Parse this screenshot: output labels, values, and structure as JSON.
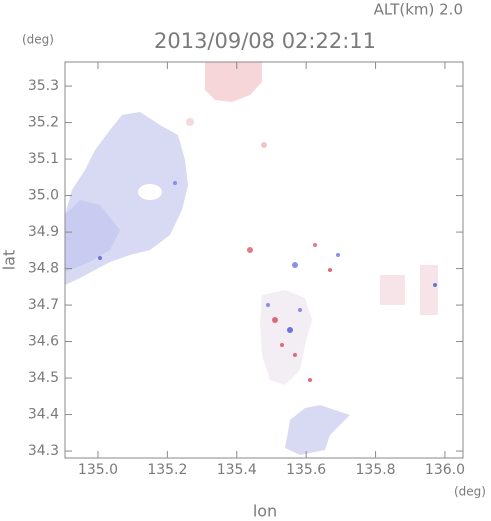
{
  "chart_data": {
    "type": "map",
    "title": "2013/09/08 02:22:11",
    "subtitle": "ALT(km) 2.0",
    "x_label": "lon",
    "y_label": "lat",
    "x_unit": "(deg)",
    "y_unit": "(deg)",
    "xlim": [
      134.905,
      136.052
    ],
    "ylim": [
      34.281,
      35.366
    ],
    "xticks": [
      {
        "value": 135,
        "label": "135.0"
      },
      135.2,
      135.4,
      135.6,
      135.8,
      {
        "value": 136,
        "label": "136.0"
      }
    ],
    "yticks": [
      34.3,
      34.4,
      34.5,
      34.6,
      34.7,
      34.8,
      34.9,
      {
        "value": 35,
        "label": "35.0"
      },
      35.1,
      35.2,
      35.3
    ]
  }
}
